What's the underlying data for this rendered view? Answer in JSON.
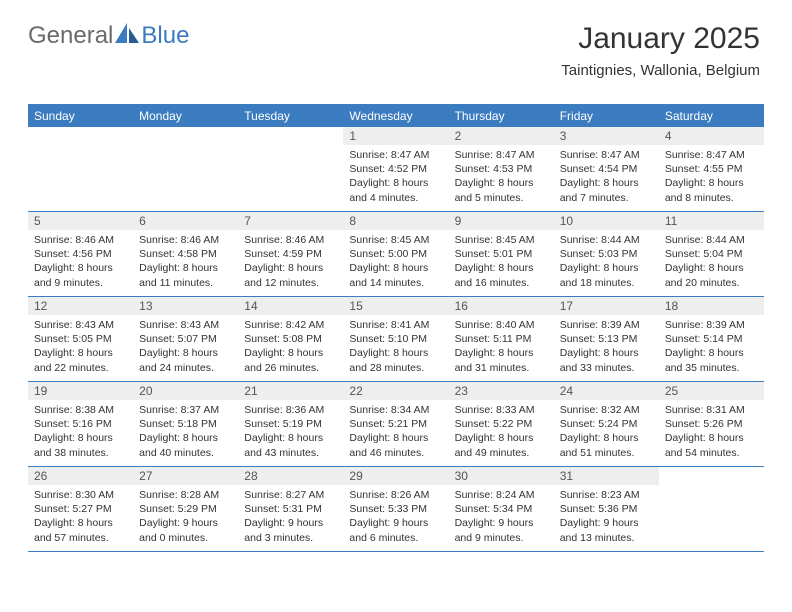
{
  "brand": {
    "part1": "General",
    "part2": "Blue"
  },
  "title": "January 2025",
  "location": "Taintignies, Wallonia, Belgium",
  "colors": {
    "accent": "#3b7bbf",
    "header_text": "#ffffff",
    "daynum_bg": "#eeeeee",
    "body_text": "#333333",
    "logo_gray": "#6a6a6a"
  },
  "weekdays": [
    "Sunday",
    "Monday",
    "Tuesday",
    "Wednesday",
    "Thursday",
    "Friday",
    "Saturday"
  ],
  "weeks": [
    [
      {
        "empty": true
      },
      {
        "empty": true
      },
      {
        "empty": true
      },
      {
        "day": "1",
        "sunrise": "Sunrise: 8:47 AM",
        "sunset": "Sunset: 4:52 PM",
        "daylight1": "Daylight: 8 hours",
        "daylight2": "and 4 minutes."
      },
      {
        "day": "2",
        "sunrise": "Sunrise: 8:47 AM",
        "sunset": "Sunset: 4:53 PM",
        "daylight1": "Daylight: 8 hours",
        "daylight2": "and 5 minutes."
      },
      {
        "day": "3",
        "sunrise": "Sunrise: 8:47 AM",
        "sunset": "Sunset: 4:54 PM",
        "daylight1": "Daylight: 8 hours",
        "daylight2": "and 7 minutes."
      },
      {
        "day": "4",
        "sunrise": "Sunrise: 8:47 AM",
        "sunset": "Sunset: 4:55 PM",
        "daylight1": "Daylight: 8 hours",
        "daylight2": "and 8 minutes."
      }
    ],
    [
      {
        "day": "5",
        "sunrise": "Sunrise: 8:46 AM",
        "sunset": "Sunset: 4:56 PM",
        "daylight1": "Daylight: 8 hours",
        "daylight2": "and 9 minutes."
      },
      {
        "day": "6",
        "sunrise": "Sunrise: 8:46 AM",
        "sunset": "Sunset: 4:58 PM",
        "daylight1": "Daylight: 8 hours",
        "daylight2": "and 11 minutes."
      },
      {
        "day": "7",
        "sunrise": "Sunrise: 8:46 AM",
        "sunset": "Sunset: 4:59 PM",
        "daylight1": "Daylight: 8 hours",
        "daylight2": "and 12 minutes."
      },
      {
        "day": "8",
        "sunrise": "Sunrise: 8:45 AM",
        "sunset": "Sunset: 5:00 PM",
        "daylight1": "Daylight: 8 hours",
        "daylight2": "and 14 minutes."
      },
      {
        "day": "9",
        "sunrise": "Sunrise: 8:45 AM",
        "sunset": "Sunset: 5:01 PM",
        "daylight1": "Daylight: 8 hours",
        "daylight2": "and 16 minutes."
      },
      {
        "day": "10",
        "sunrise": "Sunrise: 8:44 AM",
        "sunset": "Sunset: 5:03 PM",
        "daylight1": "Daylight: 8 hours",
        "daylight2": "and 18 minutes."
      },
      {
        "day": "11",
        "sunrise": "Sunrise: 8:44 AM",
        "sunset": "Sunset: 5:04 PM",
        "daylight1": "Daylight: 8 hours",
        "daylight2": "and 20 minutes."
      }
    ],
    [
      {
        "day": "12",
        "sunrise": "Sunrise: 8:43 AM",
        "sunset": "Sunset: 5:05 PM",
        "daylight1": "Daylight: 8 hours",
        "daylight2": "and 22 minutes."
      },
      {
        "day": "13",
        "sunrise": "Sunrise: 8:43 AM",
        "sunset": "Sunset: 5:07 PM",
        "daylight1": "Daylight: 8 hours",
        "daylight2": "and 24 minutes."
      },
      {
        "day": "14",
        "sunrise": "Sunrise: 8:42 AM",
        "sunset": "Sunset: 5:08 PM",
        "daylight1": "Daylight: 8 hours",
        "daylight2": "and 26 minutes."
      },
      {
        "day": "15",
        "sunrise": "Sunrise: 8:41 AM",
        "sunset": "Sunset: 5:10 PM",
        "daylight1": "Daylight: 8 hours",
        "daylight2": "and 28 minutes."
      },
      {
        "day": "16",
        "sunrise": "Sunrise: 8:40 AM",
        "sunset": "Sunset: 5:11 PM",
        "daylight1": "Daylight: 8 hours",
        "daylight2": "and 31 minutes."
      },
      {
        "day": "17",
        "sunrise": "Sunrise: 8:39 AM",
        "sunset": "Sunset: 5:13 PM",
        "daylight1": "Daylight: 8 hours",
        "daylight2": "and 33 minutes."
      },
      {
        "day": "18",
        "sunrise": "Sunrise: 8:39 AM",
        "sunset": "Sunset: 5:14 PM",
        "daylight1": "Daylight: 8 hours",
        "daylight2": "and 35 minutes."
      }
    ],
    [
      {
        "day": "19",
        "sunrise": "Sunrise: 8:38 AM",
        "sunset": "Sunset: 5:16 PM",
        "daylight1": "Daylight: 8 hours",
        "daylight2": "and 38 minutes."
      },
      {
        "day": "20",
        "sunrise": "Sunrise: 8:37 AM",
        "sunset": "Sunset: 5:18 PM",
        "daylight1": "Daylight: 8 hours",
        "daylight2": "and 40 minutes."
      },
      {
        "day": "21",
        "sunrise": "Sunrise: 8:36 AM",
        "sunset": "Sunset: 5:19 PM",
        "daylight1": "Daylight: 8 hours",
        "daylight2": "and 43 minutes."
      },
      {
        "day": "22",
        "sunrise": "Sunrise: 8:34 AM",
        "sunset": "Sunset: 5:21 PM",
        "daylight1": "Daylight: 8 hours",
        "daylight2": "and 46 minutes."
      },
      {
        "day": "23",
        "sunrise": "Sunrise: 8:33 AM",
        "sunset": "Sunset: 5:22 PM",
        "daylight1": "Daylight: 8 hours",
        "daylight2": "and 49 minutes."
      },
      {
        "day": "24",
        "sunrise": "Sunrise: 8:32 AM",
        "sunset": "Sunset: 5:24 PM",
        "daylight1": "Daylight: 8 hours",
        "daylight2": "and 51 minutes."
      },
      {
        "day": "25",
        "sunrise": "Sunrise: 8:31 AM",
        "sunset": "Sunset: 5:26 PM",
        "daylight1": "Daylight: 8 hours",
        "daylight2": "and 54 minutes."
      }
    ],
    [
      {
        "day": "26",
        "sunrise": "Sunrise: 8:30 AM",
        "sunset": "Sunset: 5:27 PM",
        "daylight1": "Daylight: 8 hours",
        "daylight2": "and 57 minutes."
      },
      {
        "day": "27",
        "sunrise": "Sunrise: 8:28 AM",
        "sunset": "Sunset: 5:29 PM",
        "daylight1": "Daylight: 9 hours",
        "daylight2": "and 0 minutes."
      },
      {
        "day": "28",
        "sunrise": "Sunrise: 8:27 AM",
        "sunset": "Sunset: 5:31 PM",
        "daylight1": "Daylight: 9 hours",
        "daylight2": "and 3 minutes."
      },
      {
        "day": "29",
        "sunrise": "Sunrise: 8:26 AM",
        "sunset": "Sunset: 5:33 PM",
        "daylight1": "Daylight: 9 hours",
        "daylight2": "and 6 minutes."
      },
      {
        "day": "30",
        "sunrise": "Sunrise: 8:24 AM",
        "sunset": "Sunset: 5:34 PM",
        "daylight1": "Daylight: 9 hours",
        "daylight2": "and 9 minutes."
      },
      {
        "day": "31",
        "sunrise": "Sunrise: 8:23 AM",
        "sunset": "Sunset: 5:36 PM",
        "daylight1": "Daylight: 9 hours",
        "daylight2": "and 13 minutes."
      },
      {
        "empty": true
      }
    ]
  ]
}
